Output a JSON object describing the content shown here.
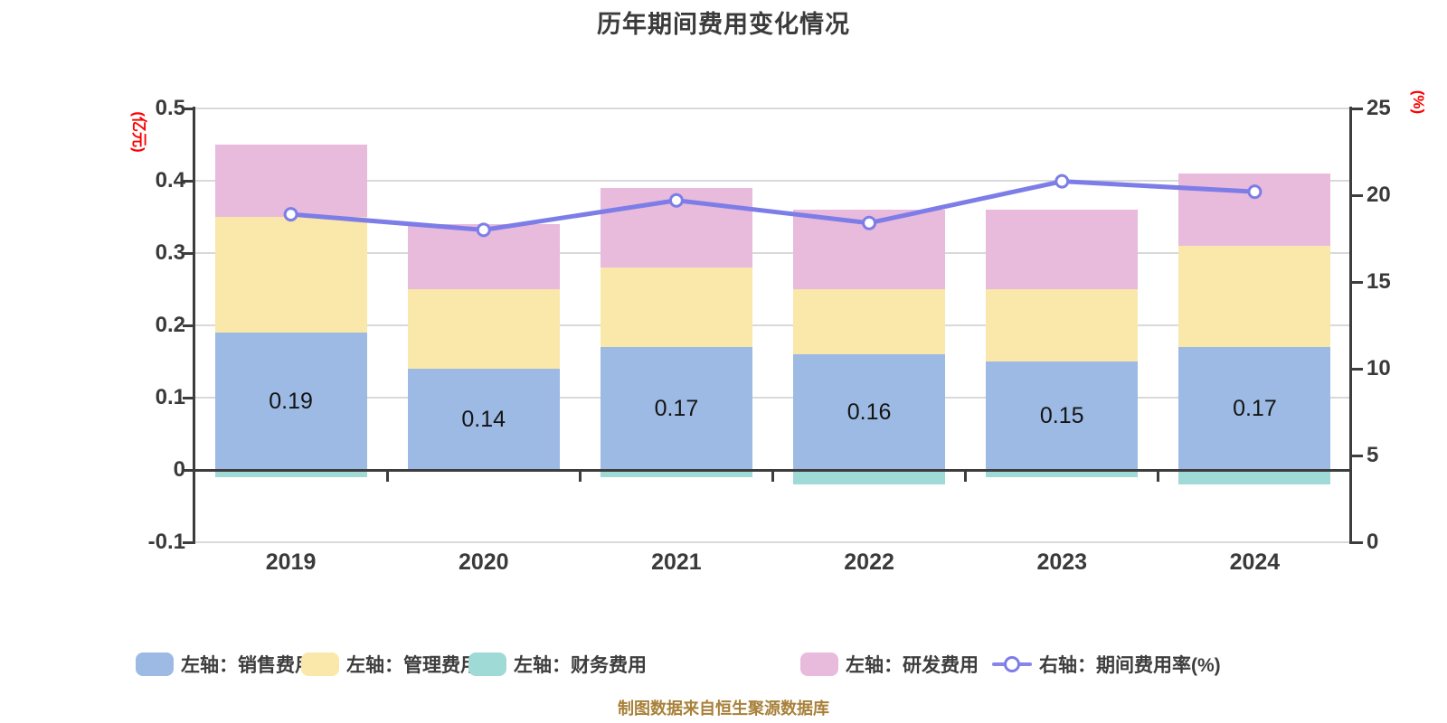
{
  "footer": "制图数据来自恒生聚源数据库",
  "chart_data": {
    "type": "bar",
    "stacked": true,
    "title": "历年期间费用变化情况",
    "categories": [
      "2019",
      "2020",
      "2021",
      "2022",
      "2023",
      "2024"
    ],
    "series": [
      {
        "name": "左轴：销售费用",
        "axis": "left",
        "color": "#9cbae3",
        "values": [
          0.19,
          0.14,
          0.17,
          0.16,
          0.15,
          0.17
        ]
      },
      {
        "name": "左轴：管理费用",
        "axis": "left",
        "color": "#f9e8a9",
        "values": [
          0.16,
          0.11,
          0.11,
          0.09,
          0.1,
          0.14
        ]
      },
      {
        "name": "左轴：财务费用",
        "axis": "left",
        "color": "#9fdad7",
        "values": [
          -0.01,
          0,
          -0.01,
          -0.02,
          -0.01,
          -0.02
        ]
      },
      {
        "name": "左轴：研发费用",
        "axis": "left",
        "color": "#e8badc",
        "values": [
          0.1,
          0.09,
          0.11,
          0.11,
          0.11,
          0.1
        ]
      }
    ],
    "line_series": {
      "name": "右轴：期间费用率(%)",
      "axis": "right",
      "color": "#7d7de8",
      "marker": "circle-white-fill",
      "values": [
        18.9,
        18.0,
        19.7,
        18.4,
        20.8,
        20.2
      ]
    },
    "bar_value_labels": [
      "0.19",
      "0.14",
      "0.17",
      "0.16",
      "0.15",
      "0.17"
    ],
    "left_axis": {
      "unit": "(亿元)",
      "unit_color": "#fe0000",
      "min": -0.1,
      "max": 0.5,
      "tick_values": [
        0.5,
        0.4,
        0.3,
        0.2,
        0.1,
        0,
        -0.1
      ],
      "tick_labels": [
        "0.5",
        "0.4",
        "0.3",
        "0.2",
        "0.1",
        "0",
        "-0.1"
      ]
    },
    "right_axis": {
      "unit": "(%)",
      "unit_color": "#fe0000",
      "min": 0,
      "max": 25,
      "tick_values": [
        25,
        20,
        15,
        10,
        5,
        0
      ],
      "tick_labels": [
        "25",
        "20",
        "15",
        "10",
        "5",
        "0"
      ]
    },
    "grid": true,
    "legend_position": "bottom"
  }
}
